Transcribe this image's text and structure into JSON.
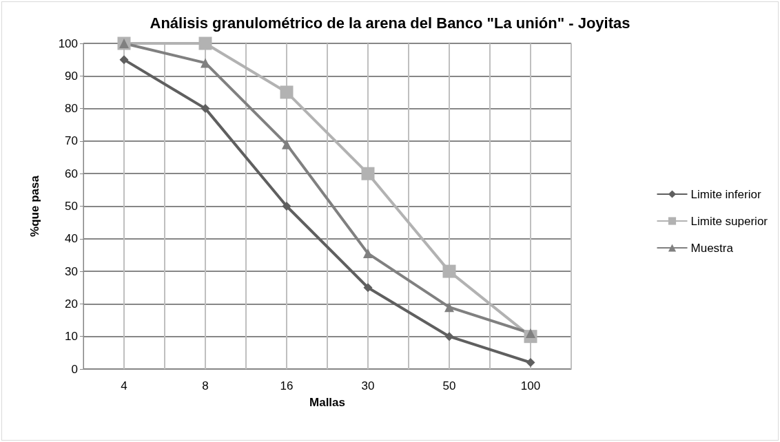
{
  "chart_data": {
    "type": "line",
    "title": "Análisis granulométrico de la arena del Banco \"La unión\" - Joyitas",
    "xlabel": "Mallas",
    "ylabel": "%que pasa",
    "categories": [
      "4",
      "8",
      "16",
      "30",
      "50",
      "100"
    ],
    "series": [
      {
        "name": "Limite inferior",
        "color": "#5f5f5f",
        "marker": "diamond",
        "values": [
          95,
          80,
          50,
          25,
          10,
          2
        ]
      },
      {
        "name": "Limite superior",
        "color": "#b2b2b2",
        "marker": "square",
        "values": [
          100,
          100,
          85,
          60,
          30,
          10
        ]
      },
      {
        "name": "Muestra",
        "color": "#808080",
        "marker": "triangle",
        "values": [
          100,
          94,
          69,
          35.5,
          19,
          11
        ]
      }
    ],
    "ylim": [
      0,
      100
    ],
    "yticks": [
      0,
      10,
      20,
      30,
      40,
      50,
      60,
      70,
      80,
      90,
      100
    ],
    "grid": true,
    "legend": "right"
  }
}
